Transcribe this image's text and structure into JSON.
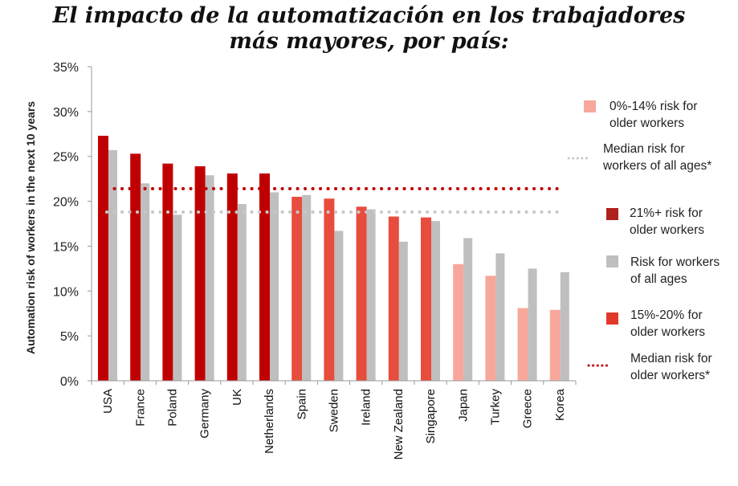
{
  "title_line1": "El impacto de la automatización en los trabajadores",
  "title_line2": "más mayores, por país:",
  "colors": {
    "high": "#c00000",
    "mid": "#e84c3d",
    "low": "#f8a79b",
    "all_ages": "#bfbfbf",
    "median_older": "#c00000",
    "median_all": "#c8c8c8",
    "legend_high": "#b0201f",
    "legend_mid": "#e0392b"
  },
  "chart_data": {
    "type": "bar",
    "title": "El impacto de la automatización en los trabajadores más mayores, por país:",
    "xlabel": "",
    "ylabel": "Automation risk of workers in the next 10 years",
    "ylim": [
      0,
      35
    ],
    "yticks": [
      "0%",
      "5%",
      "10%",
      "15%",
      "20%",
      "25%",
      "30%",
      "35%"
    ],
    "grid": false,
    "legend_position": "right",
    "categories": [
      "USA",
      "France",
      "Poland",
      "Germany",
      "UK",
      "Netherlands",
      "Spain",
      "Sweden",
      "Ireland",
      "New Zealand",
      "Singapore",
      "Japan",
      "Turkey",
      "Greece",
      "Korea"
    ],
    "series": [
      {
        "name": "Risk for older workers",
        "values": [
          27.3,
          25.3,
          24.2,
          23.9,
          23.1,
          23.1,
          20.5,
          20.3,
          19.4,
          18.3,
          18.2,
          13.0,
          11.7,
          8.1,
          7.9
        ],
        "bands": [
          "high",
          "high",
          "high",
          "high",
          "high",
          "high",
          "mid",
          "mid",
          "mid",
          "mid",
          "mid",
          "low",
          "low",
          "low",
          "low"
        ]
      },
      {
        "name": "Risk for workers of all ages",
        "values": [
          25.7,
          22.0,
          18.5,
          22.9,
          19.7,
          21.0,
          20.7,
          16.7,
          19.1,
          15.5,
          17.8,
          15.9,
          14.2,
          12.5,
          12.1
        ]
      }
    ],
    "reference_lines": [
      {
        "name": "Median risk for older workers*",
        "value": 21.4,
        "style": "dotted",
        "color": "median_older"
      },
      {
        "name": "Median risk for workers of all ages*",
        "value": 18.8,
        "style": "dotted",
        "color": "median_all"
      }
    ],
    "legend": [
      {
        "lines": [
          "0%-14% risk for",
          "older workers"
        ],
        "marker": "square",
        "color": "low"
      },
      {
        "lines": [
          "Median risk for",
          "workers of all ages*"
        ],
        "marker": "dots",
        "color": "median_all"
      },
      {
        "lines": [
          "21%+ risk for",
          "older workers"
        ],
        "marker": "square",
        "color": "legend_high"
      },
      {
        "lines": [
          "Risk for workers",
          "of all ages"
        ],
        "marker": "square",
        "color": "all_ages"
      },
      {
        "lines": [
          "15%-20% for",
          "older workers"
        ],
        "marker": "square",
        "color": "legend_mid"
      },
      {
        "lines": [
          "Median risk for",
          "older workers*"
        ],
        "marker": "dots",
        "color": "median_older"
      }
    ]
  }
}
